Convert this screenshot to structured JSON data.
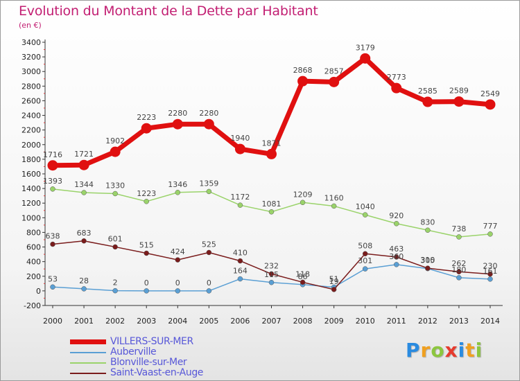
{
  "header": {
    "title": "Evolution du Montant de la Dette par Habitant",
    "subtitle": "(en €)"
  },
  "logo": {
    "letters": [
      "P",
      "r",
      "o",
      "x",
      "i",
      "t",
      "i"
    ],
    "colors": [
      "#2a8be0",
      "#f0a020",
      "#8cc63f",
      "#e63b2e",
      "#2a8be0",
      "#f0a020",
      "#8cc63f"
    ]
  },
  "chart_data": {
    "type": "line",
    "title": "Evolution du Montant de la Dette par Habitant",
    "subtitle": "(en €)",
    "xlabel": "",
    "ylabel": "",
    "x": [
      "2000",
      "2001",
      "2002",
      "2003",
      "2004",
      "2005",
      "2006",
      "2007",
      "2008",
      "2009",
      "2010",
      "2011",
      "2012",
      "2013",
      "2014"
    ],
    "ylim": [
      -200,
      3400
    ],
    "yticks": [
      "-200",
      "0",
      "200",
      "400",
      "600",
      "800",
      "1000",
      "1200",
      "1400",
      "1600",
      "1800",
      "2000",
      "2200",
      "2400",
      "2600",
      "2800",
      "3000",
      "3200",
      "3400"
    ],
    "grid": false,
    "legend": "bottom-left",
    "series": [
      {
        "name": "VILLERS-SUR-MER",
        "color": "#e01010",
        "values": [
          1716,
          1721,
          1902,
          2223,
          2280,
          2280,
          1940,
          1871,
          2868,
          2857,
          3179,
          2773,
          2585,
          2589,
          2549
        ],
        "labels": [
          "1716",
          "1721",
          "1902",
          "2223",
          "2280",
          "2280",
          "1940",
          "1871",
          "2868",
          "2857",
          "3179",
          "2773",
          "2585",
          "2589",
          "2549"
        ]
      },
      {
        "name": "Auberville",
        "color": "#5a9fd4",
        "values": [
          53,
          28,
          2,
          0,
          0,
          0,
          164,
          115,
          86,
          51,
          301,
          360,
          305,
          180,
          161
        ],
        "labels": [
          "53",
          "28",
          "2",
          "0",
          "0",
          "0",
          "164",
          "115",
          "86",
          "51",
          "301",
          "360",
          "305",
          "180",
          "161"
        ]
      },
      {
        "name": "Blonville-sur-Mer",
        "color": "#9ad36a",
        "values": [
          1393,
          1344,
          1330,
          1223,
          1346,
          1359,
          1172,
          1081,
          1209,
          1160,
          1040,
          920,
          830,
          738,
          777
        ],
        "labels": [
          "1393",
          "1344",
          "1330",
          "1223",
          "1346",
          "1359",
          "1172",
          "1081",
          "1209",
          "1160",
          "1040",
          "920",
          "830",
          "738",
          "777"
        ]
      },
      {
        "name": "Saint-Vaast-en-Auge",
        "color": "#7a1c1c",
        "values": [
          638,
          683,
          601,
          515,
          424,
          525,
          410,
          232,
          118,
          19,
          508,
          463,
          310,
          262,
          230
        ],
        "labels": [
          "638",
          "683",
          "601",
          "515",
          "424",
          "525",
          "410",
          "232",
          "118",
          "19",
          "508",
          "463",
          "310",
          "262",
          "230"
        ]
      }
    ]
  }
}
